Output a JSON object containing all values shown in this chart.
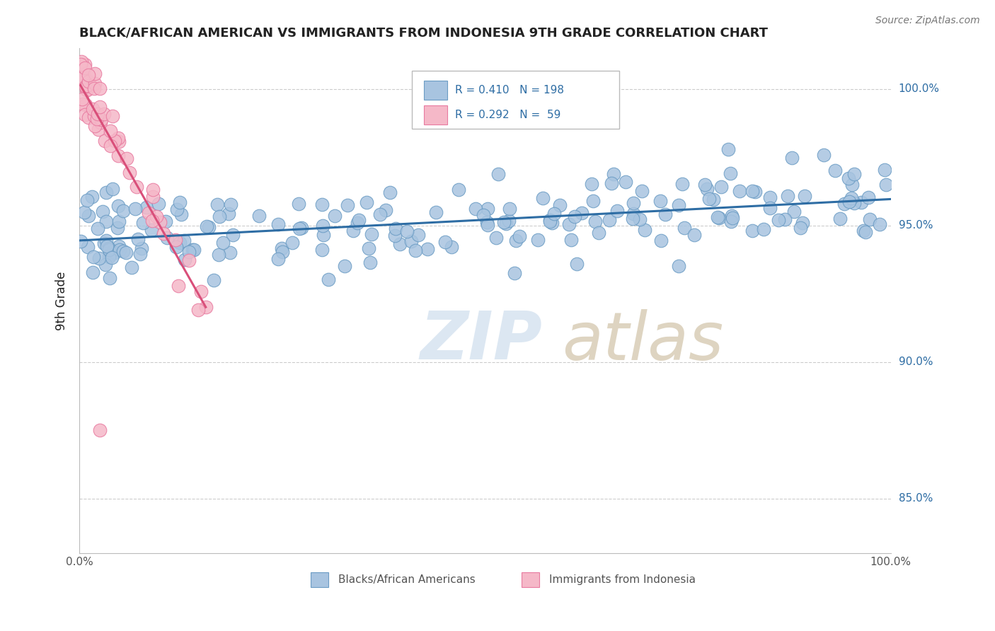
{
  "title": "BLACK/AFRICAN AMERICAN VS IMMIGRANTS FROM INDONESIA 9TH GRADE CORRELATION CHART",
  "source": "Source: ZipAtlas.com",
  "ylabel": "9th Grade",
  "xlim": [
    0.0,
    100.0
  ],
  "ylim": [
    83.0,
    101.5
  ],
  "yticks": [
    85.0,
    90.0,
    95.0,
    100.0
  ],
  "xtick_vals": [
    0.0,
    100.0
  ],
  "xtick_labels": [
    "0.0%",
    "100.0%"
  ],
  "blue_R": 0.41,
  "blue_N": 198,
  "pink_R": 0.292,
  "pink_N": 59,
  "blue_color": "#a8c4e0",
  "blue_edge": "#6b9cc4",
  "blue_line_color": "#2e6da4",
  "pink_color": "#f5b8c8",
  "pink_edge": "#e87aa0",
  "pink_line_color": "#d94f7a",
  "title_color": "#222222",
  "source_color": "#777777",
  "ylabel_color": "#222222",
  "grid_color": "#cccccc",
  "right_label_color": "#2e6da4",
  "legend_R_color": "#2e6da4",
  "legend_N_color": "#cc3300",
  "watermark_zip_color": "#c5d8ea",
  "watermark_atlas_color": "#c8b898"
}
